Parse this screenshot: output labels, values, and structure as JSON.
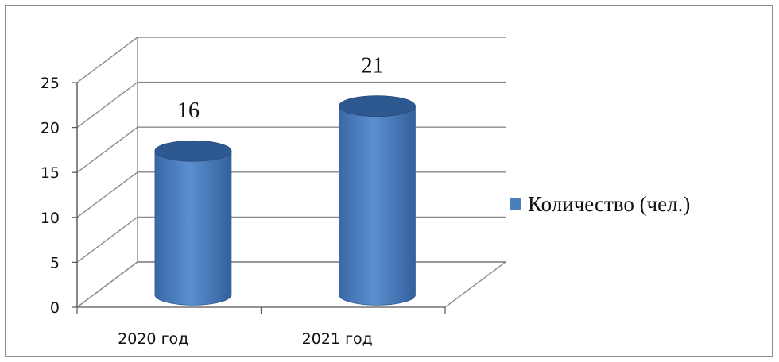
{
  "chart_data": {
    "type": "bar",
    "style": "3d-cylinder",
    "categories": [
      "2020 год",
      "2021 год"
    ],
    "series": [
      {
        "name": "Количество (чел.)",
        "values": [
          16,
          21
        ],
        "color": "#4a7ebb"
      }
    ],
    "data_labels": [
      "16",
      "21"
    ],
    "y_ticks": [
      "0",
      "5",
      "10",
      "15",
      "20",
      "25"
    ],
    "ylim": [
      0,
      25
    ],
    "grid": true,
    "legend_position": "right"
  }
}
